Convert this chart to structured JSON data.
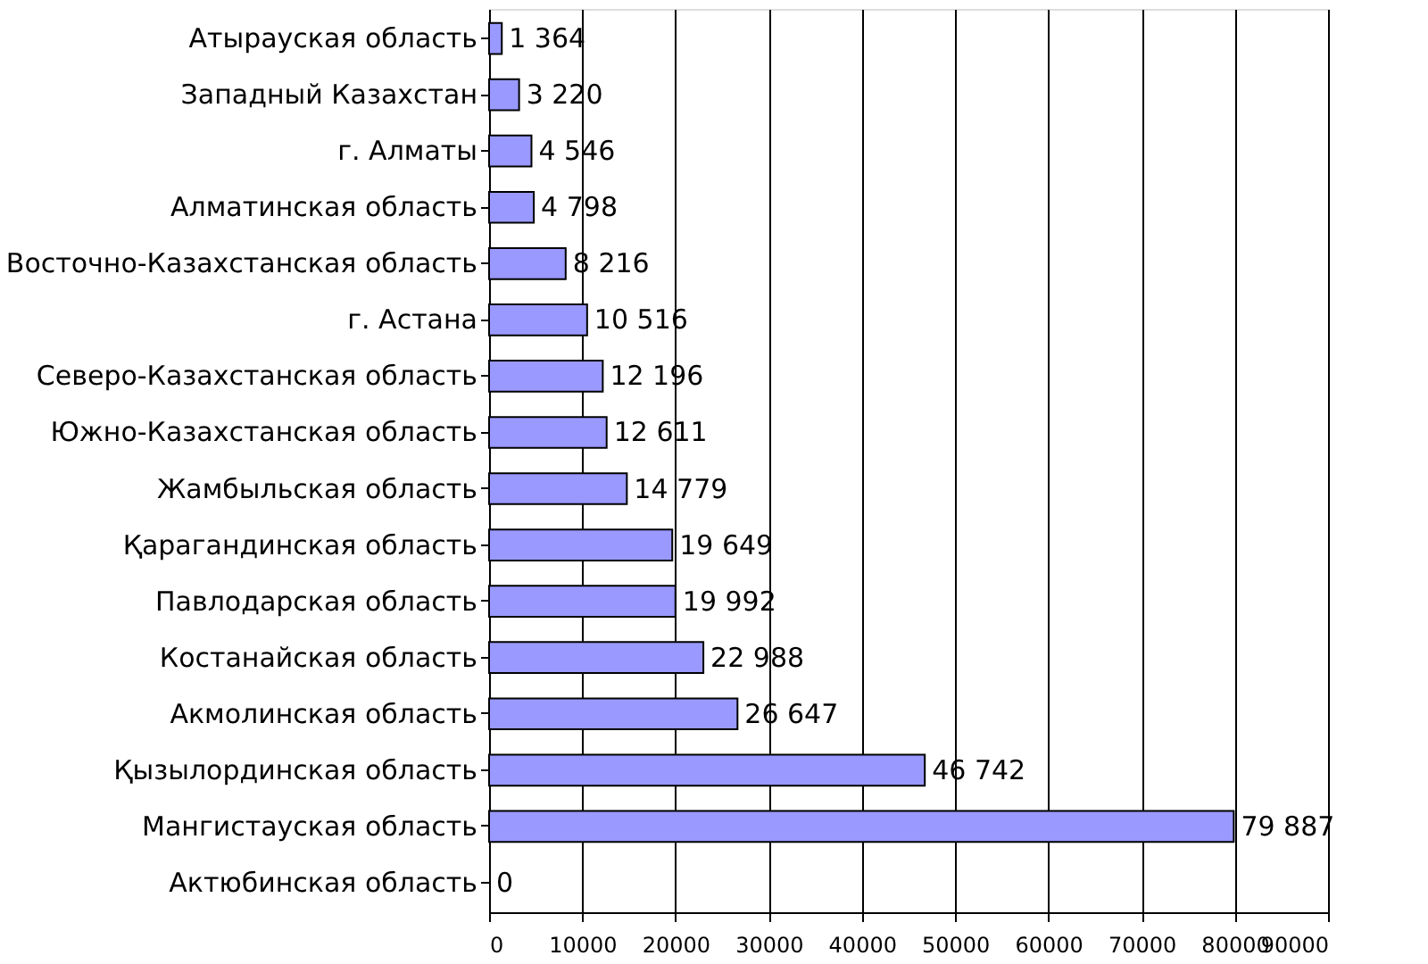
{
  "chart_data": {
    "type": "bar",
    "orientation": "horizontal",
    "categories": [
      "Атырауская область",
      "Западный Казахстан",
      "г. Алматы",
      "Алматинская область",
      "Восточно-Казахстанская область",
      "г. Астана",
      "Северо-Казахстанская область",
      "Южно-Казахстанская область",
      "Жамбыльская область",
      "Қарагандинская область",
      "Павлодарская область",
      "Костанайская область",
      "Акмолинская область",
      "Қызылординская область",
      "Мангистауская область",
      "Актюбинская область"
    ],
    "values": [
      1364,
      3220,
      4546,
      4798,
      8216,
      10516,
      12196,
      12611,
      14779,
      19649,
      19992,
      22988,
      26647,
      46742,
      79887,
      0
    ],
    "value_labels": [
      "1 364",
      "3 220",
      "4 546",
      "4 798",
      "8 216",
      "10 516",
      "12 196",
      "12 611",
      "14 779",
      "19 649",
      "19 992",
      "22 988",
      "26 647",
      "46 742",
      "79 887",
      "0"
    ],
    "color": "#9999ff",
    "xlim": [
      0,
      90000
    ],
    "xticks": [
      0,
      10000,
      20000,
      30000,
      40000,
      50000,
      60000,
      70000,
      80000,
      90000
    ],
    "grid": "x"
  }
}
